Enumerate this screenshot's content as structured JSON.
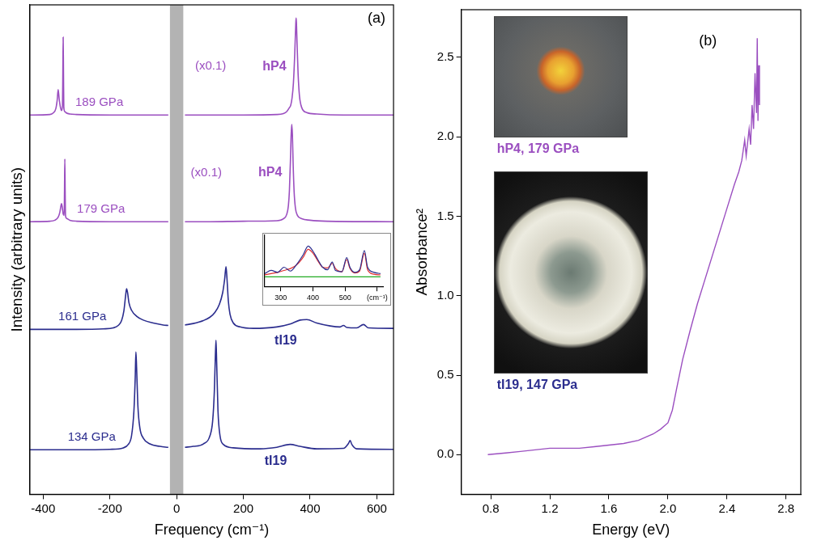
{
  "chart_data": [
    {
      "type": "line",
      "title": "(a)",
      "x_label": "Frequency (cm⁻¹)",
      "y_label": "Intensity (arbitrary units)",
      "xlim": [
        -440,
        650
      ],
      "xticks": [
        -400,
        -200,
        0,
        200,
        400,
        600
      ],
      "ylim": [
        0,
        100
      ],
      "yticks": [],
      "tick_labels": "x",
      "grid": false,
      "excluded_range": [
        -20,
        20
      ],
      "series": [
        {
          "name": "189 GPa",
          "phase": "hP4",
          "annotation": "(x0.1)",
          "color": "#9b4fc0",
          "x": [
            -440,
            -380,
            -370,
            -362,
            -358,
            -355,
            -352,
            -348,
            -345,
            -342,
            -341,
            -340,
            -339,
            -338,
            -335,
            -330,
            -320,
            -300,
            -200,
            -100,
            -25,
            0,
            25,
            100,
            200,
            300,
            320,
            330,
            338,
            342,
            346,
            350,
            354,
            357,
            358,
            359,
            361,
            364,
            368,
            375,
            390,
            420,
            500,
            650
          ],
          "values": [
            77.5,
            77.6,
            77.9,
            78.8,
            80.5,
            82.7,
            80.8,
            79.0,
            78.4,
            79.5,
            86,
            93.4,
            86,
            79.0,
            78.2,
            77.9,
            77.7,
            77.6,
            77.5,
            77.5,
            77.5,
            null,
            77.5,
            77.5,
            77.5,
            77.6,
            77.8,
            78.2,
            79.0,
            79.5,
            81.0,
            84.0,
            90.0,
            96.0,
            97.3,
            96.5,
            92.0,
            86.0,
            81.5,
            79.0,
            78.0,
            77.7,
            77.5,
            77.5
          ]
        },
        {
          "name": "179 GPa",
          "phase": "hP4",
          "annotation": "(x0.1)",
          "color": "#9b4fc0",
          "x": [
            -440,
            -380,
            -365,
            -355,
            -350,
            -347,
            -345,
            -343,
            -340,
            -337,
            -336,
            -335,
            -334,
            -333,
            -330,
            -320,
            -300,
            -200,
            -100,
            -25,
            0,
            25,
            100,
            200,
            300,
            320,
            330,
            335,
            338,
            341,
            343,
            345,
            347,
            349,
            352,
            356,
            362,
            375,
            400,
            450,
            650
          ],
          "values": [
            55.7,
            55.8,
            56.0,
            56.6,
            57.6,
            58.8,
            59.4,
            58.8,
            57.3,
            57.0,
            62,
            68.5,
            62,
            57.0,
            56.4,
            56.0,
            55.8,
            55.7,
            55.7,
            55.7,
            null,
            55.7,
            55.7,
            55.8,
            55.9,
            56.3,
            57.2,
            59.0,
            62.0,
            68.0,
            73.0,
            75.6,
            73.5,
            68.0,
            62.0,
            58.5,
            57.0,
            56.3,
            56.0,
            55.8,
            55.7
          ]
        },
        {
          "name": "161 GPa",
          "phase": "tI19",
          "color": "#2b2d8e",
          "x": [
            -440,
            -300,
            -220,
            -190,
            -175,
            -165,
            -158,
            -153,
            -150,
            -147,
            -143,
            -135,
            -120,
            -100,
            -70,
            -40,
            -25,
            0,
            25,
            50,
            80,
            100,
            115,
            128,
            138,
            144,
            148,
            151,
            155,
            160,
            170,
            190,
            230,
            300,
            340,
            370,
            390,
            420,
            460,
            490,
            500,
            510,
            540,
            560,
            575,
            650
          ],
          "values": [
            33.7,
            33.7,
            33.8,
            34.0,
            34.5,
            35.5,
            37.5,
            40.5,
            42.0,
            41.2,
            39.2,
            37.6,
            36.4,
            35.6,
            35.0,
            34.6,
            34.5,
            null,
            34.6,
            34.9,
            35.5,
            36.2,
            37.2,
            38.8,
            41.2,
            44.0,
            46.5,
            44.0,
            39.5,
            36.8,
            35.0,
            34.2,
            33.9,
            34.2,
            34.8,
            35.6,
            35.7,
            35.0,
            34.4,
            34.2,
            34.5,
            34.1,
            34.0,
            34.7,
            34.0,
            33.9
          ]
        },
        {
          "name": "134 GPa",
          "phase": "tI19",
          "color": "#2b2d8e",
          "x": [
            -440,
            -300,
            -200,
            -160,
            -145,
            -135,
            -128,
            -124,
            -122,
            -120,
            -116,
            -110,
            -100,
            -80,
            -50,
            -25,
            0,
            25,
            50,
            80,
            100,
            108,
            113,
            116,
            118,
            120,
            124,
            130,
            140,
            170,
            250,
            300,
            340,
            370,
            420,
            500,
            515,
            520,
            525,
            540,
            650
          ],
          "values": [
            9.1,
            9.1,
            9.2,
            9.5,
            10.2,
            12.0,
            17.0,
            24.0,
            29.1,
            26.0,
            18.0,
            13.5,
            11.5,
            10.3,
            9.8,
            9.6,
            null,
            9.6,
            9.8,
            10.3,
            12.0,
            15.0,
            21.0,
            28.0,
            31.5,
            27.0,
            17.0,
            12.0,
            10.2,
            9.5,
            9.3,
            9.6,
            10.2,
            9.8,
            9.3,
            9.4,
            10.4,
            11.0,
            10.2,
            9.3,
            9.2
          ]
        }
      ]
    },
    {
      "type": "line",
      "xlim": [
        250,
        620
      ],
      "xticks": [
        300,
        400,
        500,
        {
          "value": 600,
          "label": "(cm⁻¹)"
        }
      ],
      "ylim": [
        0,
        8
      ],
      "yticks": [],
      "tick_labels": "x",
      "grid": false,
      "x": [
        250,
        270,
        290,
        310,
        330,
        350,
        370,
        385,
        400,
        415,
        430,
        445,
        460,
        470,
        490,
        505,
        515,
        530,
        545,
        560,
        570,
        590,
        610
      ],
      "series": [
        {
          "color": "#2b2d8e",
          "values": [
            2.0,
            2.5,
            2.2,
            3.0,
            2.4,
            3.5,
            5.0,
            6.3,
            5.5,
            4.2,
            3.0,
            2.6,
            3.8,
            2.5,
            2.3,
            4.5,
            3.0,
            2.2,
            2.6,
            5.6,
            3.0,
            2.2,
            2.0
          ]
        },
        {
          "color": "#e03030",
          "values": [
            1.8,
            2.0,
            2.2,
            2.5,
            2.8,
            3.4,
            4.6,
            5.8,
            5.2,
            4.0,
            3.0,
            2.9,
            3.6,
            2.8,
            2.3,
            4.2,
            2.8,
            2.1,
            2.4,
            5.2,
            2.6,
            1.9,
            1.8
          ]
        },
        {
          "color": "#22aa22",
          "values": [
            1.5,
            1.5,
            1.5,
            1.5,
            1.5,
            1.5,
            1.5,
            1.5,
            1.5,
            1.5,
            1.5,
            1.5,
            1.5,
            1.5,
            1.5,
            1.5,
            1.5,
            1.5,
            1.5,
            1.5,
            1.5,
            1.5,
            1.5
          ]
        }
      ]
    },
    {
      "type": "line",
      "title": "(b)",
      "x_label": "Energy (eV)",
      "y_label": "Absorbance²",
      "xlim": [
        0.6,
        2.9
      ],
      "xticks": [
        0.8,
        1.2,
        1.6,
        {
          "value": 2.0,
          "label": "2.0"
        },
        2.4,
        2.8
      ],
      "ylim": [
        -0.25,
        2.8
      ],
      "yticks": [
        {
          "value": 0,
          "label": "0.0"
        },
        0.5,
        {
          "value": 1.0,
          "label": "1.0"
        },
        1.5,
        {
          "value": 2.0,
          "label": "2.0"
        },
        2.5
      ],
      "grid": false,
      "color": "#9b4fc0",
      "x": [
        0.78,
        0.9,
        1.0,
        1.1,
        1.2,
        1.3,
        1.4,
        1.5,
        1.6,
        1.7,
        1.8,
        1.85,
        1.9,
        1.95,
        2.0,
        2.03,
        2.06,
        2.1,
        2.15,
        2.2,
        2.25,
        2.3,
        2.35,
        2.4,
        2.45,
        2.48,
        2.5,
        2.52,
        2.53,
        2.55,
        2.56,
        2.57,
        2.58,
        2.59,
        2.6,
        2.605,
        2.61,
        2.615,
        2.62
      ],
      "values": [
        0.0,
        0.01,
        0.02,
        0.03,
        0.04,
        0.04,
        0.04,
        0.05,
        0.06,
        0.07,
        0.09,
        0.11,
        0.13,
        0.16,
        0.2,
        0.28,
        0.42,
        0.6,
        0.78,
        0.95,
        1.1,
        1.25,
        1.4,
        1.55,
        1.7,
        1.78,
        1.85,
        1.98,
        1.88,
        2.05,
        1.95,
        2.2,
        2.05,
        2.4,
        2.15,
        2.62,
        2.1,
        2.45,
        2.2
      ],
      "images": [
        {
          "label": "hP4, 179 GPa",
          "color": "#9b4fc0"
        },
        {
          "label": "tI19, 147 GPa",
          "color": "#2b2d8e"
        }
      ]
    }
  ]
}
